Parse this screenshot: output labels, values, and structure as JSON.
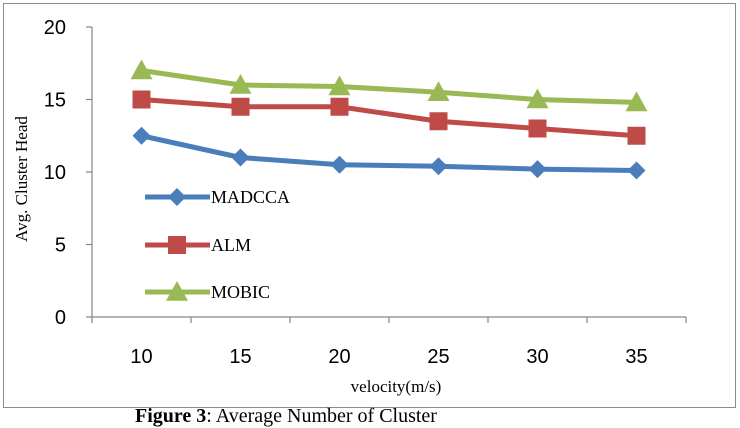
{
  "chart_data": {
    "type": "line",
    "title": "",
    "xlabel": "velocity(m/s)",
    "ylabel": "Avg. Cluster Head",
    "categories": [
      "10",
      "15",
      "20",
      "25",
      "30",
      "35"
    ],
    "ylim": [
      0,
      20
    ],
    "yticks": [
      "0",
      "5",
      "10",
      "15",
      "20"
    ],
    "grid": false,
    "legend_position": "left-inside",
    "series": [
      {
        "name": "MADCCA",
        "values": [
          12.5,
          11.0,
          10.5,
          10.4,
          10.2,
          10.1
        ],
        "color": "#4a7ebb",
        "marker": "diamond"
      },
      {
        "name": "ALM",
        "values": [
          15.0,
          14.5,
          14.5,
          13.5,
          13.0,
          12.5
        ],
        "color": "#be4b48",
        "marker": "square"
      },
      {
        "name": "MOBIC",
        "values": [
          17.0,
          16.0,
          15.9,
          15.5,
          15.0,
          14.8
        ],
        "color": "#98b954",
        "marker": "triangle"
      }
    ]
  },
  "caption": {
    "label": "Figure 3",
    "text": ": Average Number of Cluster"
  }
}
